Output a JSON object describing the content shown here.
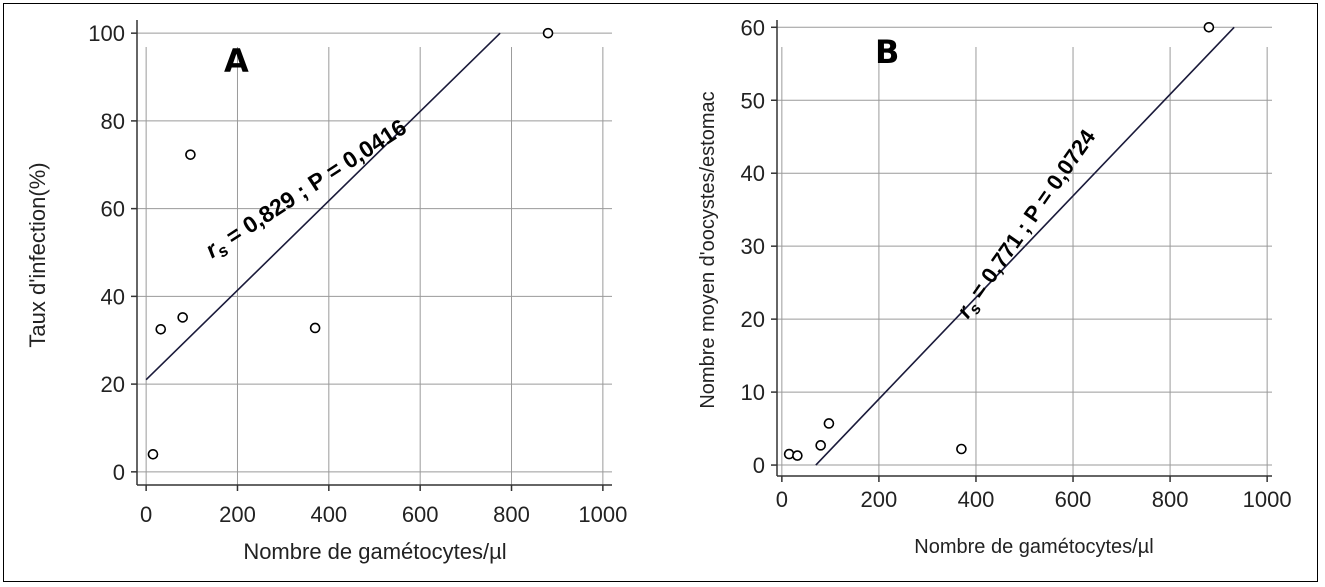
{
  "chart_data": [
    {
      "type": "scatter",
      "panel_label": "A",
      "xlabel": "Nombre de gamétocytes/µl",
      "ylabel": "Taux d'infection(%)",
      "xlim": [
        -20,
        1020
      ],
      "ylim": [
        -3,
        103
      ],
      "xticks": [
        0,
        200,
        400,
        600,
        800,
        1000
      ],
      "yticks": [
        0,
        20,
        40,
        60,
        80,
        100
      ],
      "grid": true,
      "points": [
        {
          "x": 15,
          "y": 4
        },
        {
          "x": 32,
          "y": 32.5
        },
        {
          "x": 80,
          "y": 35.2
        },
        {
          "x": 97,
          "y": 72.3
        },
        {
          "x": 370,
          "y": 32.8
        },
        {
          "x": 880,
          "y": 100
        }
      ],
      "fit_line": {
        "x": [
          0,
          775
        ],
        "y": [
          21,
          100
        ]
      },
      "annotation": {
        "r_symbol": "r",
        "r_subscript": "s",
        "text": " = 0,829 ; P = 0,0416"
      }
    },
    {
      "type": "scatter",
      "panel_label": "B",
      "xlabel": "Nombre de gamétocytes/µl",
      "ylabel": "Nombre moyen d'oocystes/estomac",
      "xlim": [
        -10,
        1010
      ],
      "ylim": [
        -1.5,
        61
      ],
      "xticks": [
        0,
        200,
        400,
        600,
        800,
        1000
      ],
      "yticks": [
        0,
        10,
        20,
        30,
        40,
        50,
        60
      ],
      "grid": true,
      "points": [
        {
          "x": 15,
          "y": 1.5
        },
        {
          "x": 32,
          "y": 1.3
        },
        {
          "x": 80,
          "y": 2.7
        },
        {
          "x": 97,
          "y": 5.7
        },
        {
          "x": 370,
          "y": 2.2
        },
        {
          "x": 880,
          "y": 60
        }
      ],
      "fit_line": {
        "x": [
          70,
          932
        ],
        "y": [
          0,
          60
        ]
      },
      "annotation": {
        "r_symbol": "r",
        "r_subscript": "s",
        "text": " = 0,771 ; P = 0,0724"
      }
    }
  ]
}
